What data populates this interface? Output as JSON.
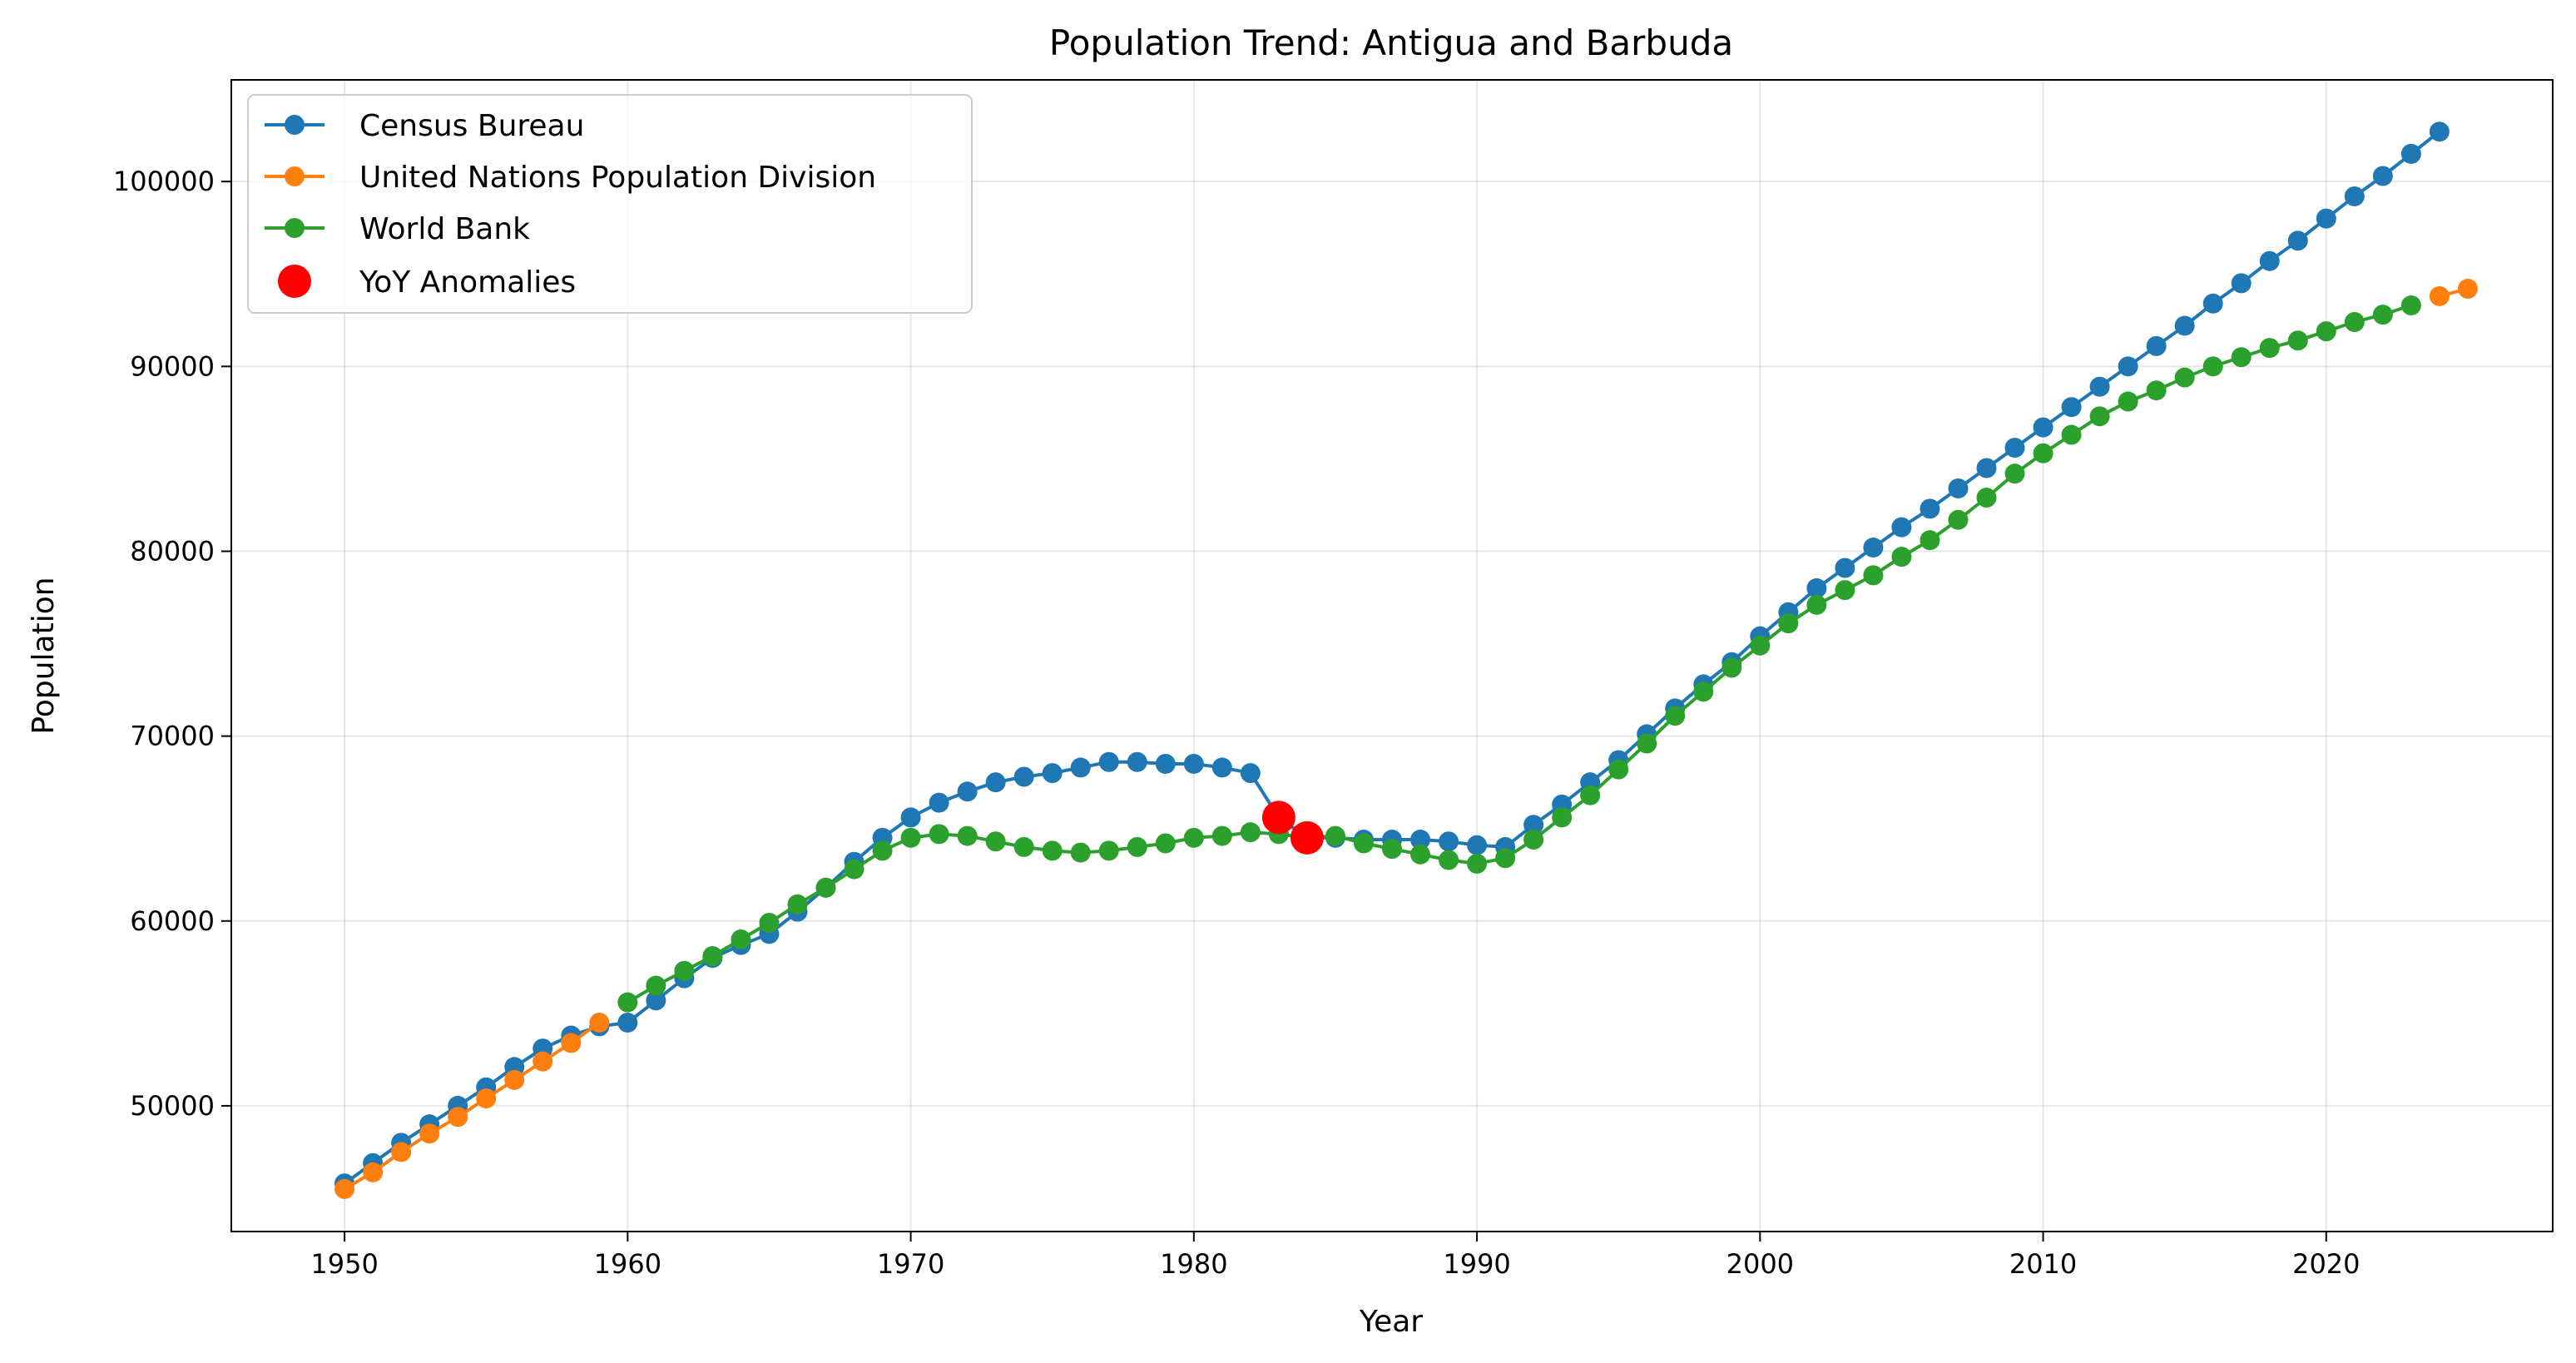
{
  "chart_data": {
    "type": "line",
    "title": "Population Trend: Antigua and Barbuda",
    "xlabel": "Year",
    "ylabel": "Population",
    "xlim": [
      1946,
      2028
    ],
    "ylim": [
      43200,
      105500
    ],
    "xticks": [
      1950,
      1960,
      1970,
      1980,
      1990,
      2000,
      2010,
      2020
    ],
    "yticks": [
      50000,
      60000,
      70000,
      80000,
      90000,
      100000
    ],
    "grid": true,
    "legend_position": "top-left",
    "series": [
      {
        "name": "Census Bureau",
        "color": "#1f77b4",
        "x": [
          1950,
          1951,
          1952,
          1953,
          1954,
          1955,
          1956,
          1957,
          1958,
          1959,
          1960,
          1961,
          1962,
          1963,
          1964,
          1965,
          1966,
          1967,
          1968,
          1969,
          1970,
          1971,
          1972,
          1973,
          1974,
          1975,
          1976,
          1977,
          1978,
          1979,
          1980,
          1981,
          1982,
          1983,
          1984,
          1985,
          1986,
          1987,
          1988,
          1989,
          1990,
          1991,
          1992,
          1993,
          1994,
          1995,
          1996,
          1997,
          1998,
          1999,
          2000,
          2001,
          2002,
          2003,
          2004,
          2005,
          2006,
          2007,
          2008,
          2009,
          2010,
          2011,
          2012,
          2013,
          2014,
          2015,
          2016,
          2017,
          2018,
          2019,
          2020,
          2021,
          2022,
          2023,
          2024
        ],
        "y": [
          45800,
          46900,
          48000,
          49000,
          50000,
          51000,
          52100,
          53100,
          53800,
          54300,
          54500,
          55700,
          56900,
          58000,
          58700,
          59300,
          60500,
          61800,
          63200,
          64500,
          65600,
          66400,
          67000,
          67500,
          67800,
          68000,
          68300,
          68600,
          68600,
          68500,
          68500,
          68300,
          68000,
          65600,
          64500,
          64500,
          64400,
          64400,
          64400,
          64300,
          64100,
          64000,
          65200,
          66300,
          67500,
          68700,
          70100,
          71500,
          72800,
          74000,
          75400,
          76700,
          78000,
          79100,
          80200,
          81300,
          82300,
          83400,
          84500,
          85600,
          86700,
          87800,
          88900,
          90000,
          91100,
          92200,
          93400,
          94500,
          95700,
          96800,
          98000,
          99200,
          100300,
          101500,
          102700
        ]
      },
      {
        "name": "United Nations Population Division",
        "color": "#ff7f0e",
        "x": [
          1950,
          1951,
          1952,
          1953,
          1954,
          1955,
          1956,
          1957,
          1958,
          1959,
          2024,
          2025
        ],
        "y": [
          45500,
          46400,
          47500,
          48500,
          49400,
          50400,
          51400,
          52400,
          53400,
          54500,
          93800,
          94200
        ]
      },
      {
        "name": "World Bank",
        "color": "#2ca02c",
        "x": [
          1960,
          1961,
          1962,
          1963,
          1964,
          1965,
          1966,
          1967,
          1968,
          1969,
          1970,
          1971,
          1972,
          1973,
          1974,
          1975,
          1976,
          1977,
          1978,
          1979,
          1980,
          1981,
          1982,
          1983,
          1984,
          1985,
          1986,
          1987,
          1988,
          1989,
          1990,
          1991,
          1992,
          1993,
          1994,
          1995,
          1996,
          1997,
          1998,
          1999,
          2000,
          2001,
          2002,
          2003,
          2004,
          2005,
          2006,
          2007,
          2008,
          2009,
          2010,
          2011,
          2012,
          2013,
          2014,
          2015,
          2016,
          2017,
          2018,
          2019,
          2020,
          2021,
          2022,
          2023
        ],
        "y": [
          55600,
          56500,
          57300,
          58100,
          59000,
          59900,
          60900,
          61800,
          62800,
          63800,
          64500,
          64700,
          64600,
          64300,
          64000,
          63800,
          63700,
          63800,
          64000,
          64200,
          64500,
          64600,
          64800,
          64700,
          64500,
          64600,
          64200,
          63900,
          63600,
          63300,
          63100,
          63400,
          64400,
          65600,
          66800,
          68200,
          69600,
          71100,
          72400,
          73700,
          74900,
          76100,
          77100,
          77900,
          78700,
          79700,
          80600,
          81700,
          82900,
          84200,
          85300,
          86300,
          87300,
          88100,
          88700,
          89400,
          90000,
          90500,
          91000,
          91400,
          91900,
          92400,
          92800,
          93300
        ]
      }
    ],
    "anomalies": {
      "name": "YoY Anomalies",
      "color": "#ff0000",
      "x": [
        1983,
        1984
      ],
      "y": [
        65600,
        64500
      ]
    }
  }
}
